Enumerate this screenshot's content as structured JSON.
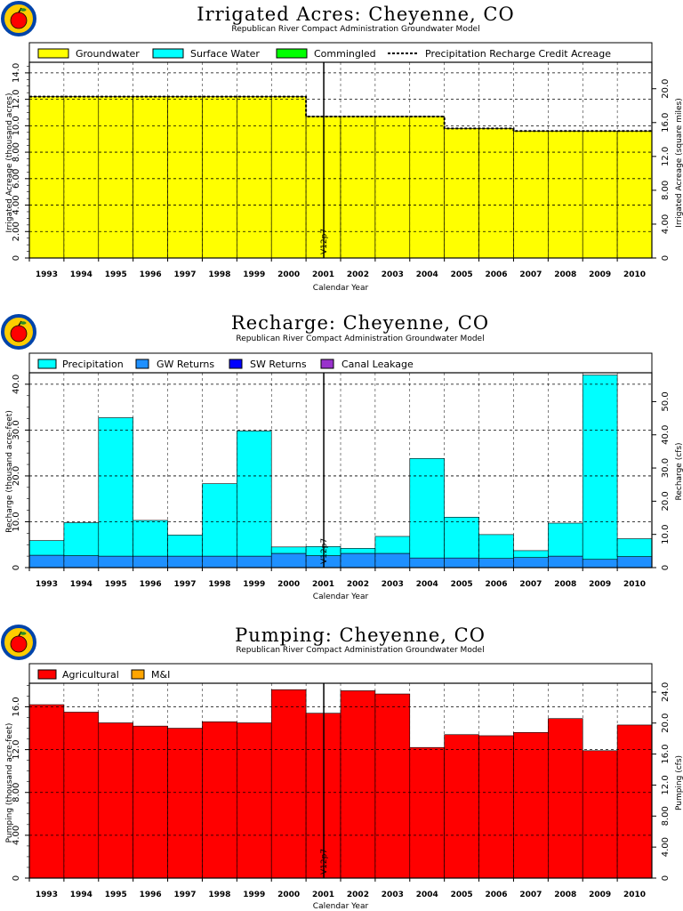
{
  "subtitle": "Republican River Compact Administration Groundwater Model",
  "xlabel": "Calendar Year",
  "version_label": "V12p7",
  "colors": {
    "groundwater": "#ffff00",
    "surface_water": "#00ffff",
    "commingled": "#00ff00",
    "precipitation": "#00ffff",
    "gw_returns": "#1e90ff",
    "sw_returns": "#0000ff",
    "canal_leakage": "#9932cc",
    "agricultural": "#ff0000",
    "mi": "#ffa500",
    "logo_red": "#ff0000",
    "logo_gold": "#ffcc00",
    "logo_blue": "#0044aa"
  },
  "chart_data": [
    {
      "type": "bar",
      "title": "Irrigated Acres: Cheyenne, CO",
      "subtitle": "Republican River Compact Administration Groundwater Model",
      "xlabel": "Calendar Year",
      "ylabel": "Irrigated Acreage (thousand acres)",
      "y2label": "Irrigated Acreage (square miles)",
      "categories": [
        "1993",
        "1994",
        "1995",
        "1996",
        "1997",
        "1998",
        "1999",
        "2000",
        "2001",
        "2002",
        "2003",
        "2004",
        "2005",
        "2006",
        "2007",
        "2008",
        "2009",
        "2010"
      ],
      "ylim": [
        0,
        14.8
      ],
      "yticks": [
        "0",
        "2.00",
        "4.00",
        "6.00",
        "8.00",
        "10.0",
        "12.0",
        "14.0"
      ],
      "y2ticks": [
        "0",
        "4.00",
        "8.00",
        "12.0",
        "16.0",
        "20.0"
      ],
      "y2_factor": 1.5625,
      "grid": true,
      "legend_position": "top",
      "series": [
        {
          "name": "Groundwater",
          "color_key": "groundwater",
          "values": [
            12.2,
            12.2,
            12.2,
            12.2,
            12.2,
            12.2,
            12.2,
            12.2,
            10.7,
            10.7,
            10.7,
            10.7,
            9.8,
            9.8,
            9.6,
            9.6,
            9.6,
            9.6
          ]
        },
        {
          "name": "Surface Water",
          "color_key": "surface_water",
          "values": [
            0,
            0,
            0,
            0,
            0,
            0,
            0,
            0,
            0,
            0,
            0,
            0,
            0,
            0,
            0,
            0,
            0,
            0
          ]
        },
        {
          "name": "Commingled",
          "color_key": "commingled",
          "values": [
            0,
            0,
            0,
            0,
            0,
            0,
            0,
            0,
            0,
            0,
            0,
            0,
            0,
            0,
            0,
            0,
            0,
            0
          ]
        }
      ],
      "line_series": {
        "name": "Precipitation Recharge Credit Acreage",
        "values": [
          12.2,
          12.2,
          12.2,
          12.2,
          12.2,
          12.2,
          12.2,
          12.2,
          10.7,
          10.7,
          10.7,
          10.7,
          9.8,
          9.8,
          9.6,
          9.6,
          9.6,
          9.6
        ]
      }
    },
    {
      "type": "bar",
      "title": "Recharge: Cheyenne, CO",
      "subtitle": "Republican River Compact Administration Groundwater Model",
      "xlabel": "Calendar Year",
      "ylabel": "Recharge (thousand acre-feet)",
      "y2label": "Recharge (cfs)",
      "categories": [
        "1993",
        "1994",
        "1995",
        "1996",
        "1997",
        "1998",
        "1999",
        "2000",
        "2001",
        "2002",
        "2003",
        "2004",
        "2005",
        "2006",
        "2007",
        "2008",
        "2009",
        "2010"
      ],
      "ylim": [
        0,
        42.5
      ],
      "yticks": [
        "0",
        "10.0",
        "20.0",
        "30.0",
        "40.0"
      ],
      "y2ticks": [
        "0",
        "10.0",
        "20.0",
        "30.0",
        "40.0",
        "50.0"
      ],
      "y2_factor": 1.381,
      "grid": true,
      "legend_position": "top",
      "series": [
        {
          "name": "Precipitation",
          "color_key": "precipitation",
          "values": [
            3.2,
            7.2,
            30.2,
            7.8,
            4.6,
            15.8,
            27.3,
            1.4,
            2.0,
            1.1,
            3.7,
            21.7,
            8.9,
            5.2,
            1.5,
            7.2,
            40.2,
            3.9
          ]
        },
        {
          "name": "GW Returns",
          "color_key": "gw_returns",
          "values": [
            2.7,
            2.6,
            2.5,
            2.5,
            2.5,
            2.5,
            2.5,
            3.1,
            2.6,
            3.1,
            3.1,
            2.1,
            2.1,
            2.0,
            2.2,
            2.5,
            1.8,
            2.4
          ]
        },
        {
          "name": "SW Returns",
          "color_key": "sw_returns",
          "values": [
            0,
            0,
            0,
            0,
            0,
            0,
            0,
            0,
            0,
            0,
            0,
            0,
            0,
            0,
            0,
            0,
            0,
            0
          ]
        },
        {
          "name": "Canal Leakage",
          "color_key": "canal_leakage",
          "values": [
            0,
            0,
            0,
            0,
            0,
            0,
            0,
            0,
            0,
            0,
            0,
            0,
            0,
            0,
            0,
            0,
            0,
            0
          ]
        }
      ]
    },
    {
      "type": "bar",
      "title": "Pumping: Cheyenne, CO",
      "subtitle": "Republican River Compact Administration Groundwater Model",
      "xlabel": "Calendar Year",
      "ylabel": "Pumping (thousand acre-feet)",
      "y2label": "Pumping (cfs)",
      "categories": [
        "1993",
        "1994",
        "1995",
        "1996",
        "1997",
        "1998",
        "1999",
        "2000",
        "2001",
        "2002",
        "2003",
        "2004",
        "2005",
        "2006",
        "2007",
        "2008",
        "2009",
        "2010"
      ],
      "ylim": [
        0,
        18.2
      ],
      "yticks": [
        "0",
        "4.00",
        "8.00",
        "12.0",
        "16.0"
      ],
      "y2ticks": [
        "0",
        "4.00",
        "8.00",
        "12.0",
        "16.0",
        "20.0",
        "24.0"
      ],
      "y2_factor": 1.381,
      "grid": true,
      "legend_position": "top",
      "series": [
        {
          "name": "Agricultural",
          "color_key": "agricultural",
          "values": [
            16.2,
            15.5,
            14.5,
            14.2,
            14.0,
            14.6,
            14.5,
            17.6,
            15.4,
            17.5,
            17.2,
            12.2,
            13.4,
            13.3,
            13.6,
            14.9,
            11.9,
            14.3
          ]
        },
        {
          "name": "M&I",
          "color_key": "mi",
          "values": [
            0,
            0,
            0,
            0,
            0,
            0,
            0,
            0,
            0,
            0,
            0,
            0,
            0,
            0,
            0,
            0,
            0,
            0
          ]
        }
      ]
    }
  ]
}
